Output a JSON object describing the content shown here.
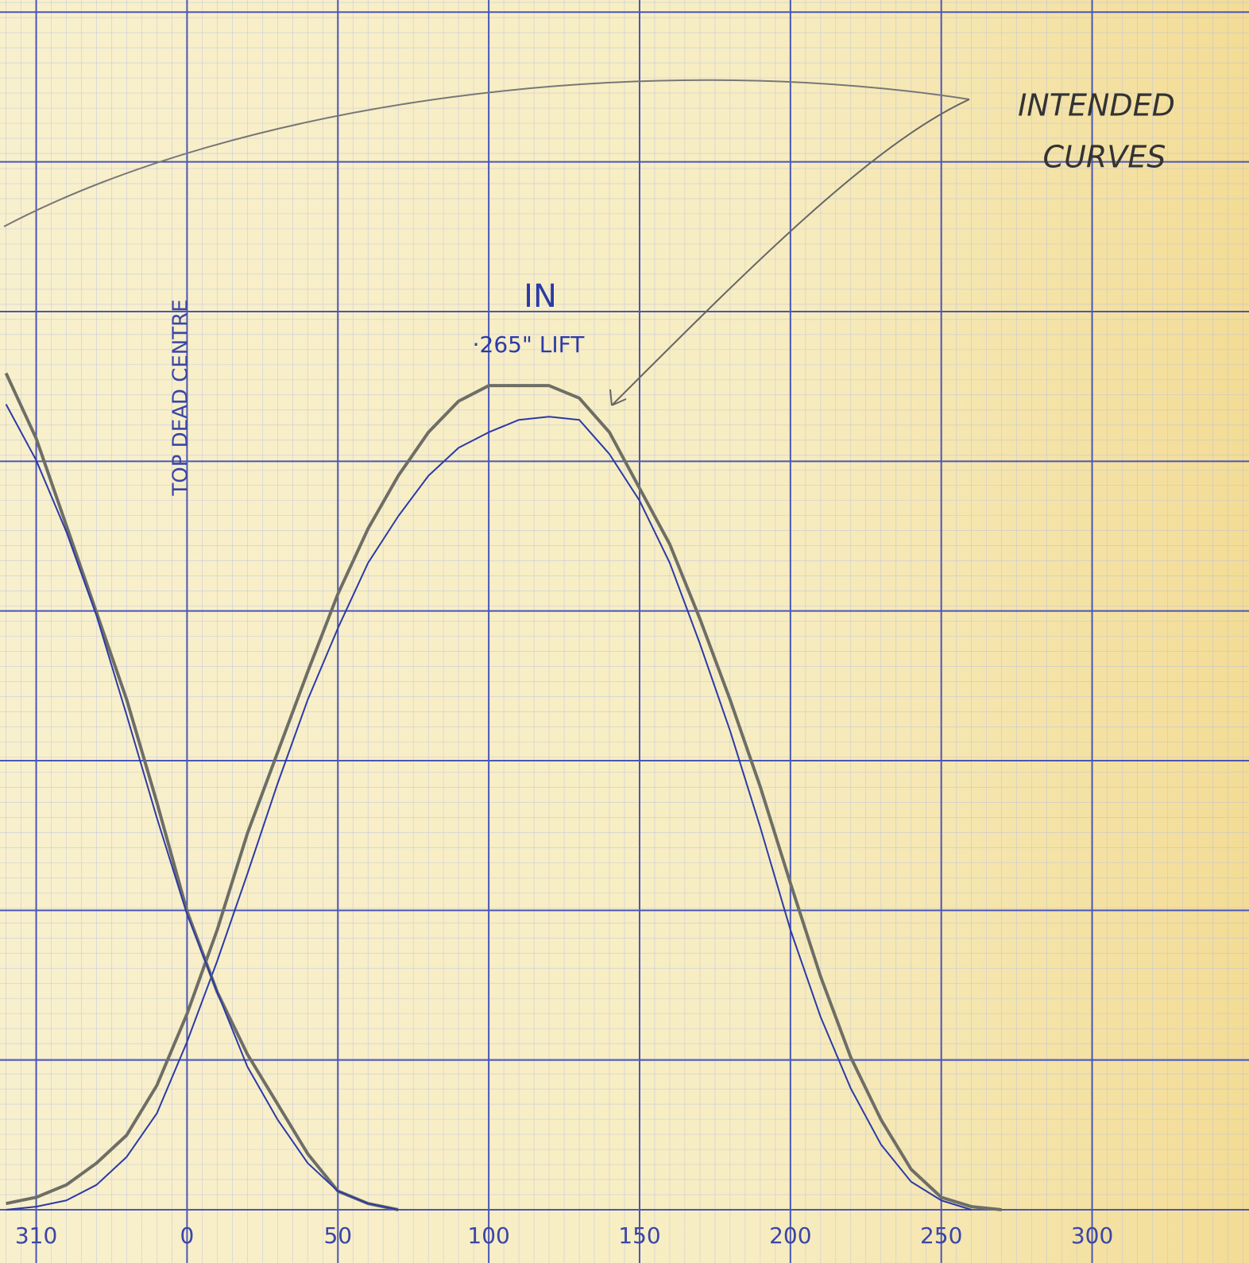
{
  "chart_data": {
    "type": "line",
    "annotations": [
      "IN",
      "·265\" LIFT",
      "TOP DEAD CENTRE",
      "INTENDED",
      "CURVES"
    ],
    "xlim": [
      -62,
      352
    ],
    "ylim": [
      0,
      0.389
    ],
    "xticks": [
      {
        "value": -50,
        "label": "310"
      },
      0,
      50,
      100,
      150,
      200,
      250,
      300
    ],
    "grid": true,
    "series": [
      {
        "color": "#6e6e66",
        "x": [
          -60,
          -50,
          -40,
          -30,
          -20,
          -10,
          0,
          10,
          20,
          30,
          40,
          50,
          60,
          70,
          80,
          90,
          100,
          110,
          120,
          130,
          140,
          150,
          160,
          170,
          180,
          190,
          200,
          210,
          220,
          230,
          240,
          250,
          260,
          270
        ],
        "values": [
          0.002,
          0.004,
          0.008,
          0.015,
          0.024,
          0.04,
          0.063,
          0.09,
          0.121,
          0.147,
          0.173,
          0.198,
          0.219,
          0.236,
          0.25,
          0.26,
          0.265,
          0.265,
          0.265,
          0.261,
          0.25,
          0.232,
          0.214,
          0.19,
          0.164,
          0.136,
          0.105,
          0.075,
          0.049,
          0.029,
          0.013,
          0.004,
          0.001,
          0
        ]
      },
      {
        "color": "#2b3aa8",
        "x": [
          -60,
          -50,
          -40,
          -30,
          -20,
          -10,
          0,
          10,
          20,
          30,
          40,
          50,
          60,
          70,
          80,
          90,
          100,
          110,
          120,
          130,
          140,
          150,
          160,
          170,
          180,
          190,
          200,
          210,
          220,
          230,
          240,
          250,
          260
        ],
        "values": [
          0,
          0.001,
          0.003,
          0.008,
          0.017,
          0.031,
          0.054,
          0.08,
          0.108,
          0.137,
          0.164,
          0.187,
          0.208,
          0.223,
          0.236,
          0.245,
          0.25,
          0.254,
          0.255,
          0.254,
          0.243,
          0.228,
          0.208,
          0.182,
          0.154,
          0.123,
          0.09,
          0.062,
          0.039,
          0.021,
          0.009,
          0.003,
          0
        ]
      },
      {
        "color": "#6e6e66",
        "x": [
          -60,
          -50,
          -40,
          -30,
          -20,
          -10,
          0,
          10,
          20,
          30,
          40,
          50,
          60,
          70
        ],
        "values": [
          0.269,
          0.248,
          0.22,
          0.192,
          0.164,
          0.131,
          0.096,
          0.07,
          0.05,
          0.034,
          0.018,
          0.006,
          0.002,
          0
        ]
      },
      {
        "color": "#2b3aa8",
        "x": [
          -60,
          -50,
          -40,
          -30,
          -20,
          -10,
          0,
          10,
          20,
          30,
          40,
          50,
          60,
          70
        ],
        "values": [
          0.259,
          0.241,
          0.218,
          0.191,
          0.159,
          0.126,
          0.095,
          0.07,
          0.046,
          0.029,
          0.015,
          0.006,
          0.002,
          0
        ]
      }
    ]
  }
}
